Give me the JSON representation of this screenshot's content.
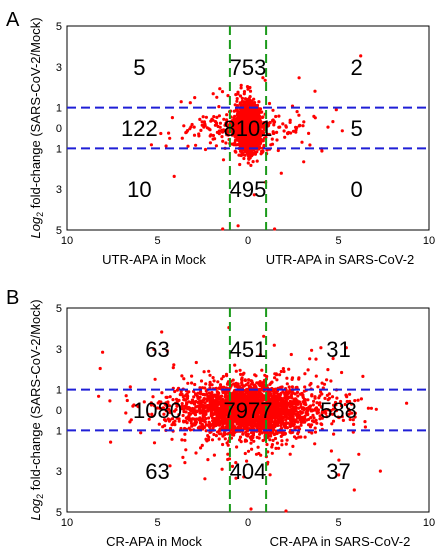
{
  "figure": {
    "y_axis_label_prefix": "Log",
    "y_axis_label_subscript": "2",
    "y_axis_label_rest": " fold-change (SARS-CoV-2/Mock)"
  },
  "colors": {
    "points": "#ff0000",
    "cutoff_horizontal": "#1f1fd6",
    "cutoff_vertical": "#1a9a1a",
    "count_text": "#000000"
  },
  "chart_data": [
    {
      "type": "scatter",
      "panel_letter": "A",
      "x_ticks": [
        "10",
        "5",
        "0",
        "5",
        "10"
      ],
      "y_ticks": [
        "5",
        "3",
        "1",
        "0",
        "1",
        "3",
        "5"
      ],
      "x_left_label": "UTR-APA in Mock",
      "x_right_label": "UTR-APA in SARS-CoV-2",
      "xlim": [
        -10,
        10
      ],
      "ylim": [
        -5,
        5
      ],
      "cutoffs": {
        "x": [
          -1,
          1
        ],
        "y": [
          -1,
          1
        ]
      },
      "grid": false,
      "spread": {
        "core_sx": 0.35,
        "core_sy": 0.6,
        "wide_sx": 1.8,
        "wide_sy": 0.35,
        "n_core": 1400,
        "n_wide": 200,
        "n_tail": 70
      },
      "region_counts": [
        {
          "label": "5",
          "x": -6,
          "y": 3
        },
        {
          "label": "753",
          "x": 0,
          "y": 3
        },
        {
          "label": "2",
          "x": 6,
          "y": 3
        },
        {
          "label": "122",
          "x": -6,
          "y": 0
        },
        {
          "label": "8101",
          "x": 0,
          "y": 0
        },
        {
          "label": "5",
          "x": 6,
          "y": 0
        },
        {
          "label": "10",
          "x": -6,
          "y": -3
        },
        {
          "label": "495",
          "x": 0,
          "y": -3
        },
        {
          "label": "0",
          "x": 6,
          "y": -3
        }
      ]
    },
    {
      "type": "scatter",
      "panel_letter": "B",
      "x_ticks": [
        "10",
        "5",
        "0",
        "5",
        "10"
      ],
      "y_ticks": [
        "5",
        "3",
        "1",
        "0",
        "1",
        "3",
        "5"
      ],
      "x_left_label": "CR-APA in Mock",
      "x_right_label": "CR-APA in SARS-CoV-2",
      "xlim": [
        -10,
        10
      ],
      "ylim": [
        -5,
        5
      ],
      "cutoffs": {
        "x": [
          -1,
          1
        ],
        "y": [
          -1,
          1
        ]
      },
      "grid": false,
      "spread": {
        "core_sx": 1.6,
        "core_sy": 0.7,
        "wide_sx": 2.6,
        "wide_sy": 0.5,
        "n_core": 1800,
        "n_wide": 700,
        "n_tail": 160
      },
      "region_counts": [
        {
          "label": "63",
          "x": -5,
          "y": 3
        },
        {
          "label": "451",
          "x": 0,
          "y": 3
        },
        {
          "label": "31",
          "x": 5,
          "y": 3
        },
        {
          "label": "1080",
          "x": -5,
          "y": 0
        },
        {
          "label": "7977",
          "x": 0,
          "y": 0
        },
        {
          "label": "588",
          "x": 5,
          "y": 0
        },
        {
          "label": "63",
          "x": -5,
          "y": -3
        },
        {
          "label": "404",
          "x": 0,
          "y": -3
        },
        {
          "label": "37",
          "x": 5,
          "y": -3
        }
      ]
    }
  ]
}
